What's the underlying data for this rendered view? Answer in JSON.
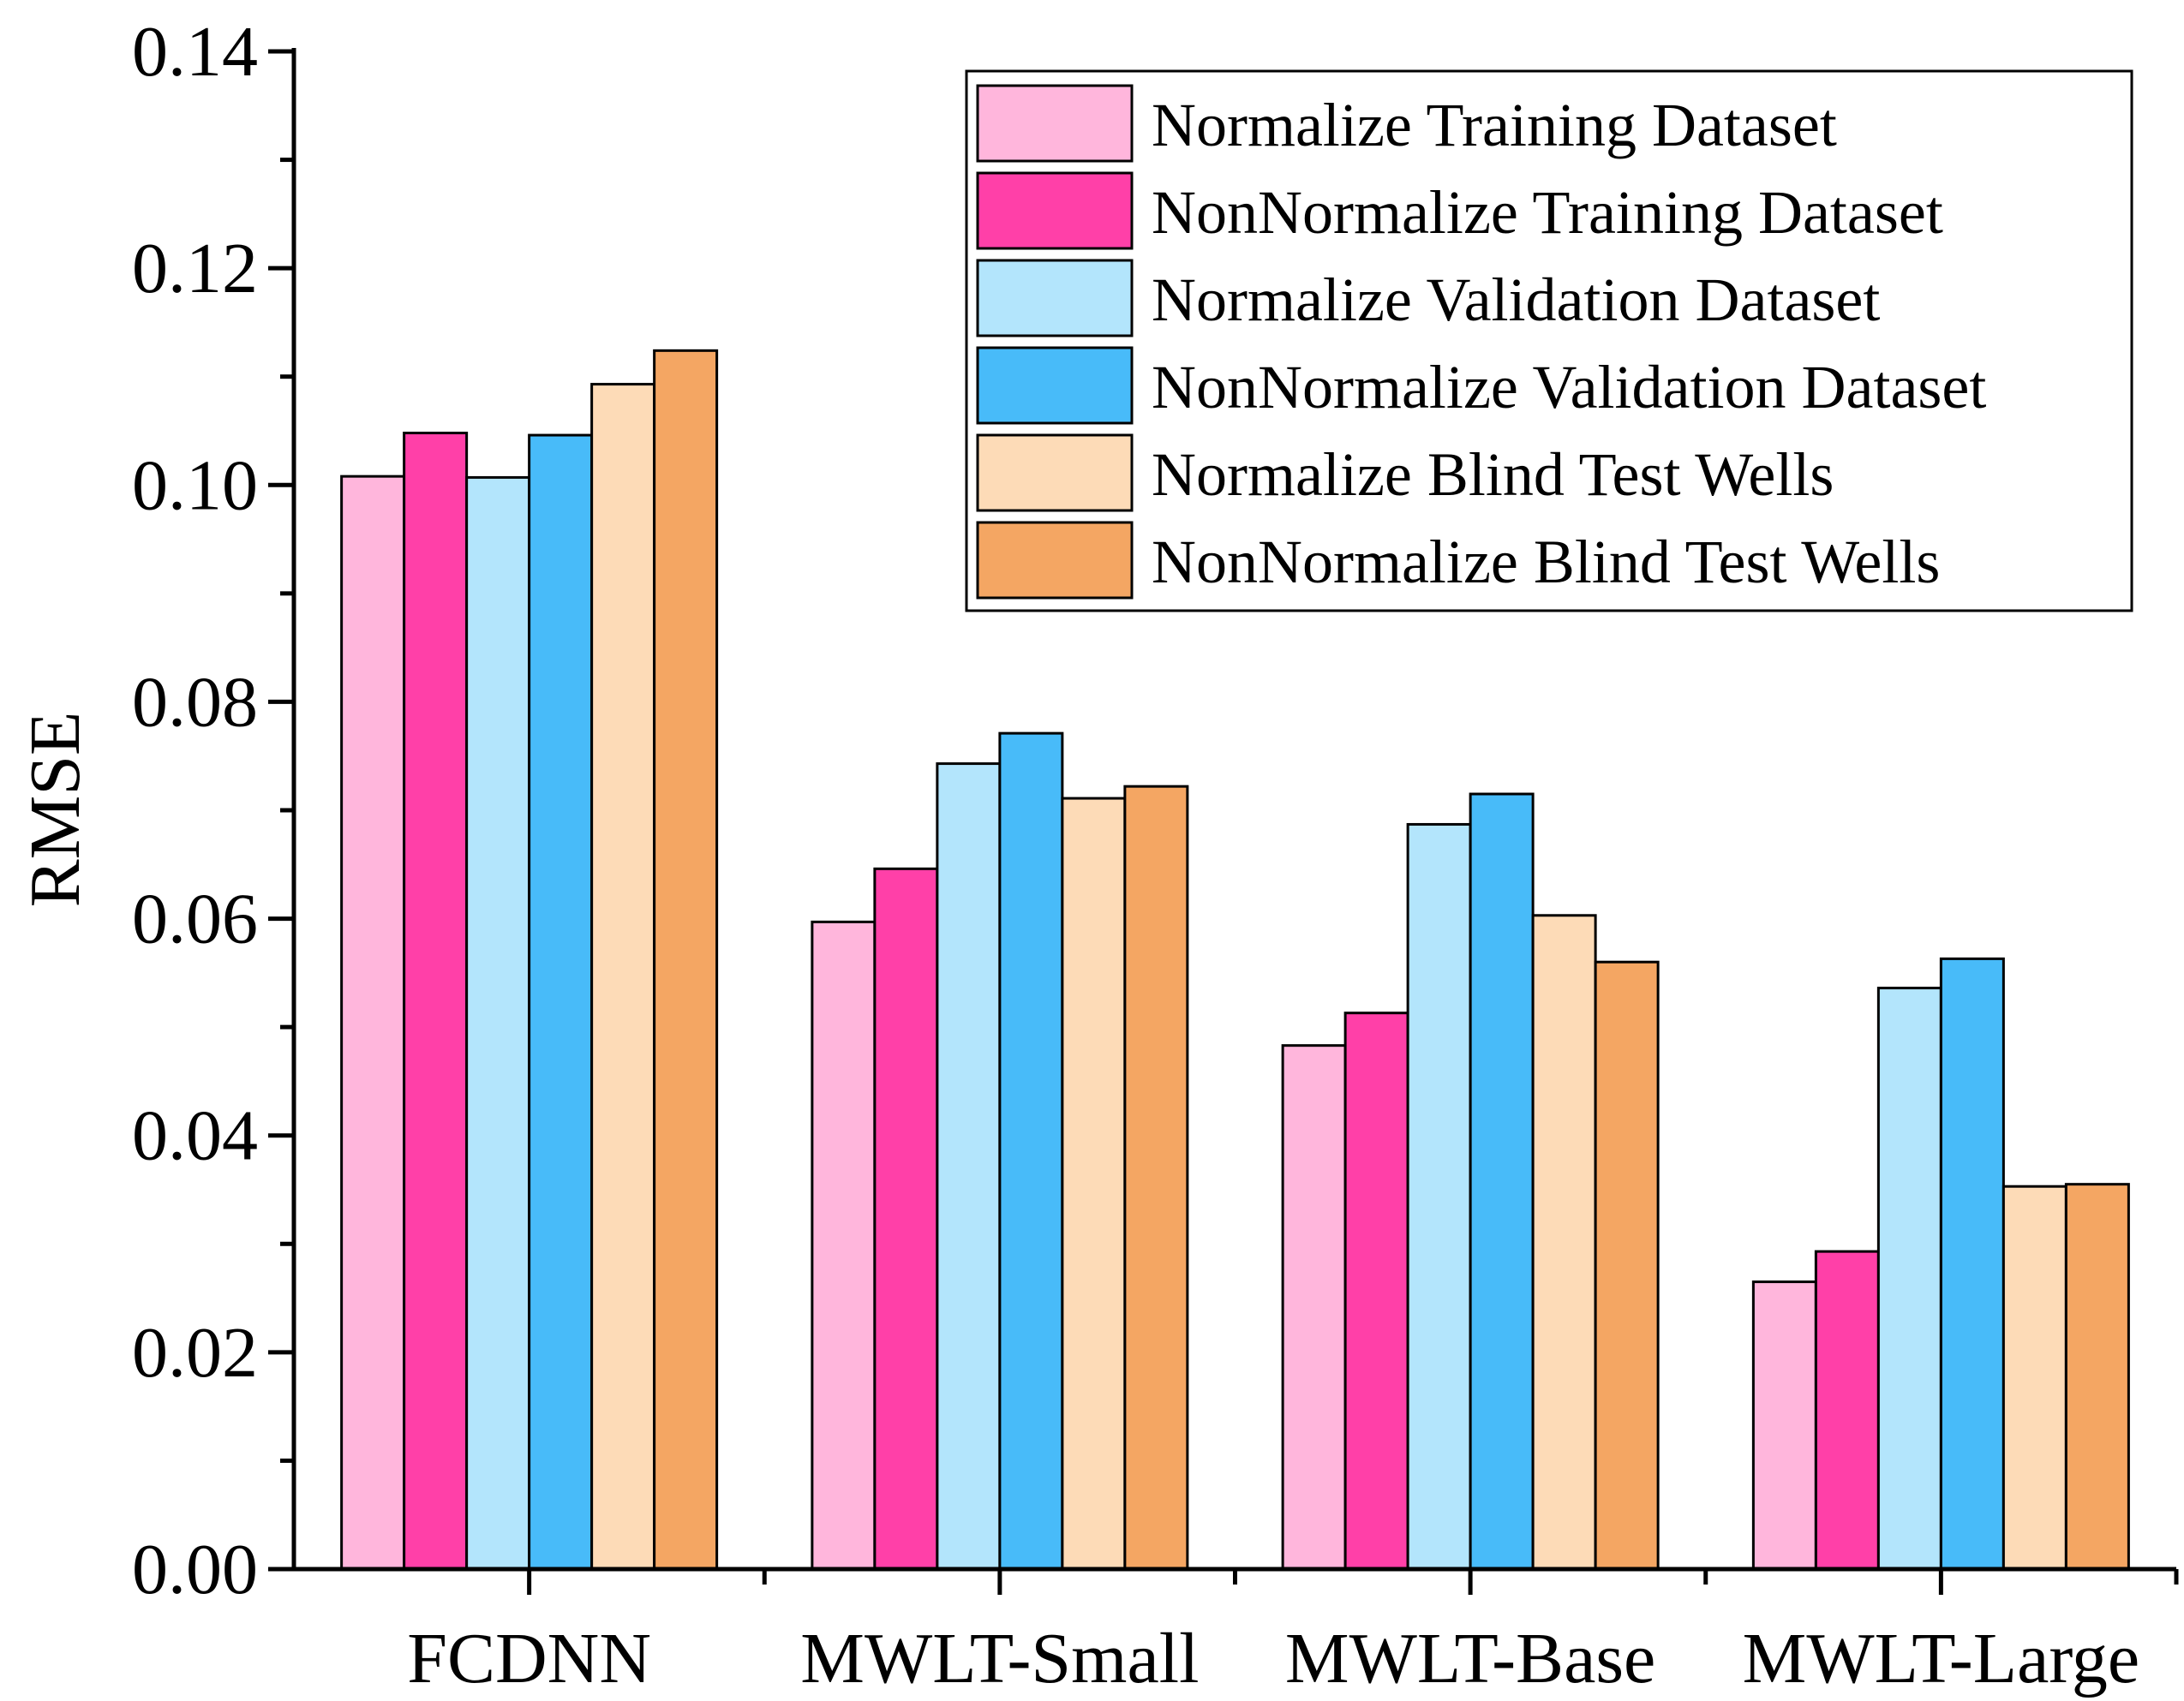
{
  "chart_data": {
    "type": "bar",
    "ylabel": "RMSE",
    "xlabel": "",
    "ylim": [
      0,
      0.14
    ],
    "yticks": [
      "0.00",
      "0.02",
      "0.04",
      "0.06",
      "0.08",
      "0.10",
      "0.12",
      "0.14"
    ],
    "ytick_values": [
      0,
      0.02,
      0.04,
      0.06,
      0.08,
      0.1,
      0.12,
      0.14
    ],
    "categories": [
      "FCDNN",
      "MWLT-Small",
      "MWLT-Base",
      "MWLT-Large"
    ],
    "legend_position": "top-right",
    "series": [
      {
        "name": "Normalize Training Dataset",
        "color": "#FFB6DC",
        "values": [
          0.1008,
          0.0597,
          0.0483,
          0.0265
        ]
      },
      {
        "name": "NonNormalize Training Dataset",
        "color": "#FF40A8",
        "values": [
          0.1048,
          0.0646,
          0.0513,
          0.0293
        ]
      },
      {
        "name": "Normalize Validation Dataset",
        "color": "#B3E5FC",
        "values": [
          0.1007,
          0.0743,
          0.0687,
          0.0536
        ]
      },
      {
        "name": "NonNormalize Validation Dataset",
        "color": "#48BBF9",
        "values": [
          0.1046,
          0.0771,
          0.0715,
          0.0563
        ]
      },
      {
        "name": "Normalize Blind Test Wells",
        "color": "#FDDBB7",
        "values": [
          0.1093,
          0.0711,
          0.0603,
          0.0353
        ]
      },
      {
        "name": "NonNormalize Blind Test Wells",
        "color": "#F4A663",
        "values": [
          0.1124,
          0.0722,
          0.056,
          0.0355
        ]
      }
    ]
  }
}
